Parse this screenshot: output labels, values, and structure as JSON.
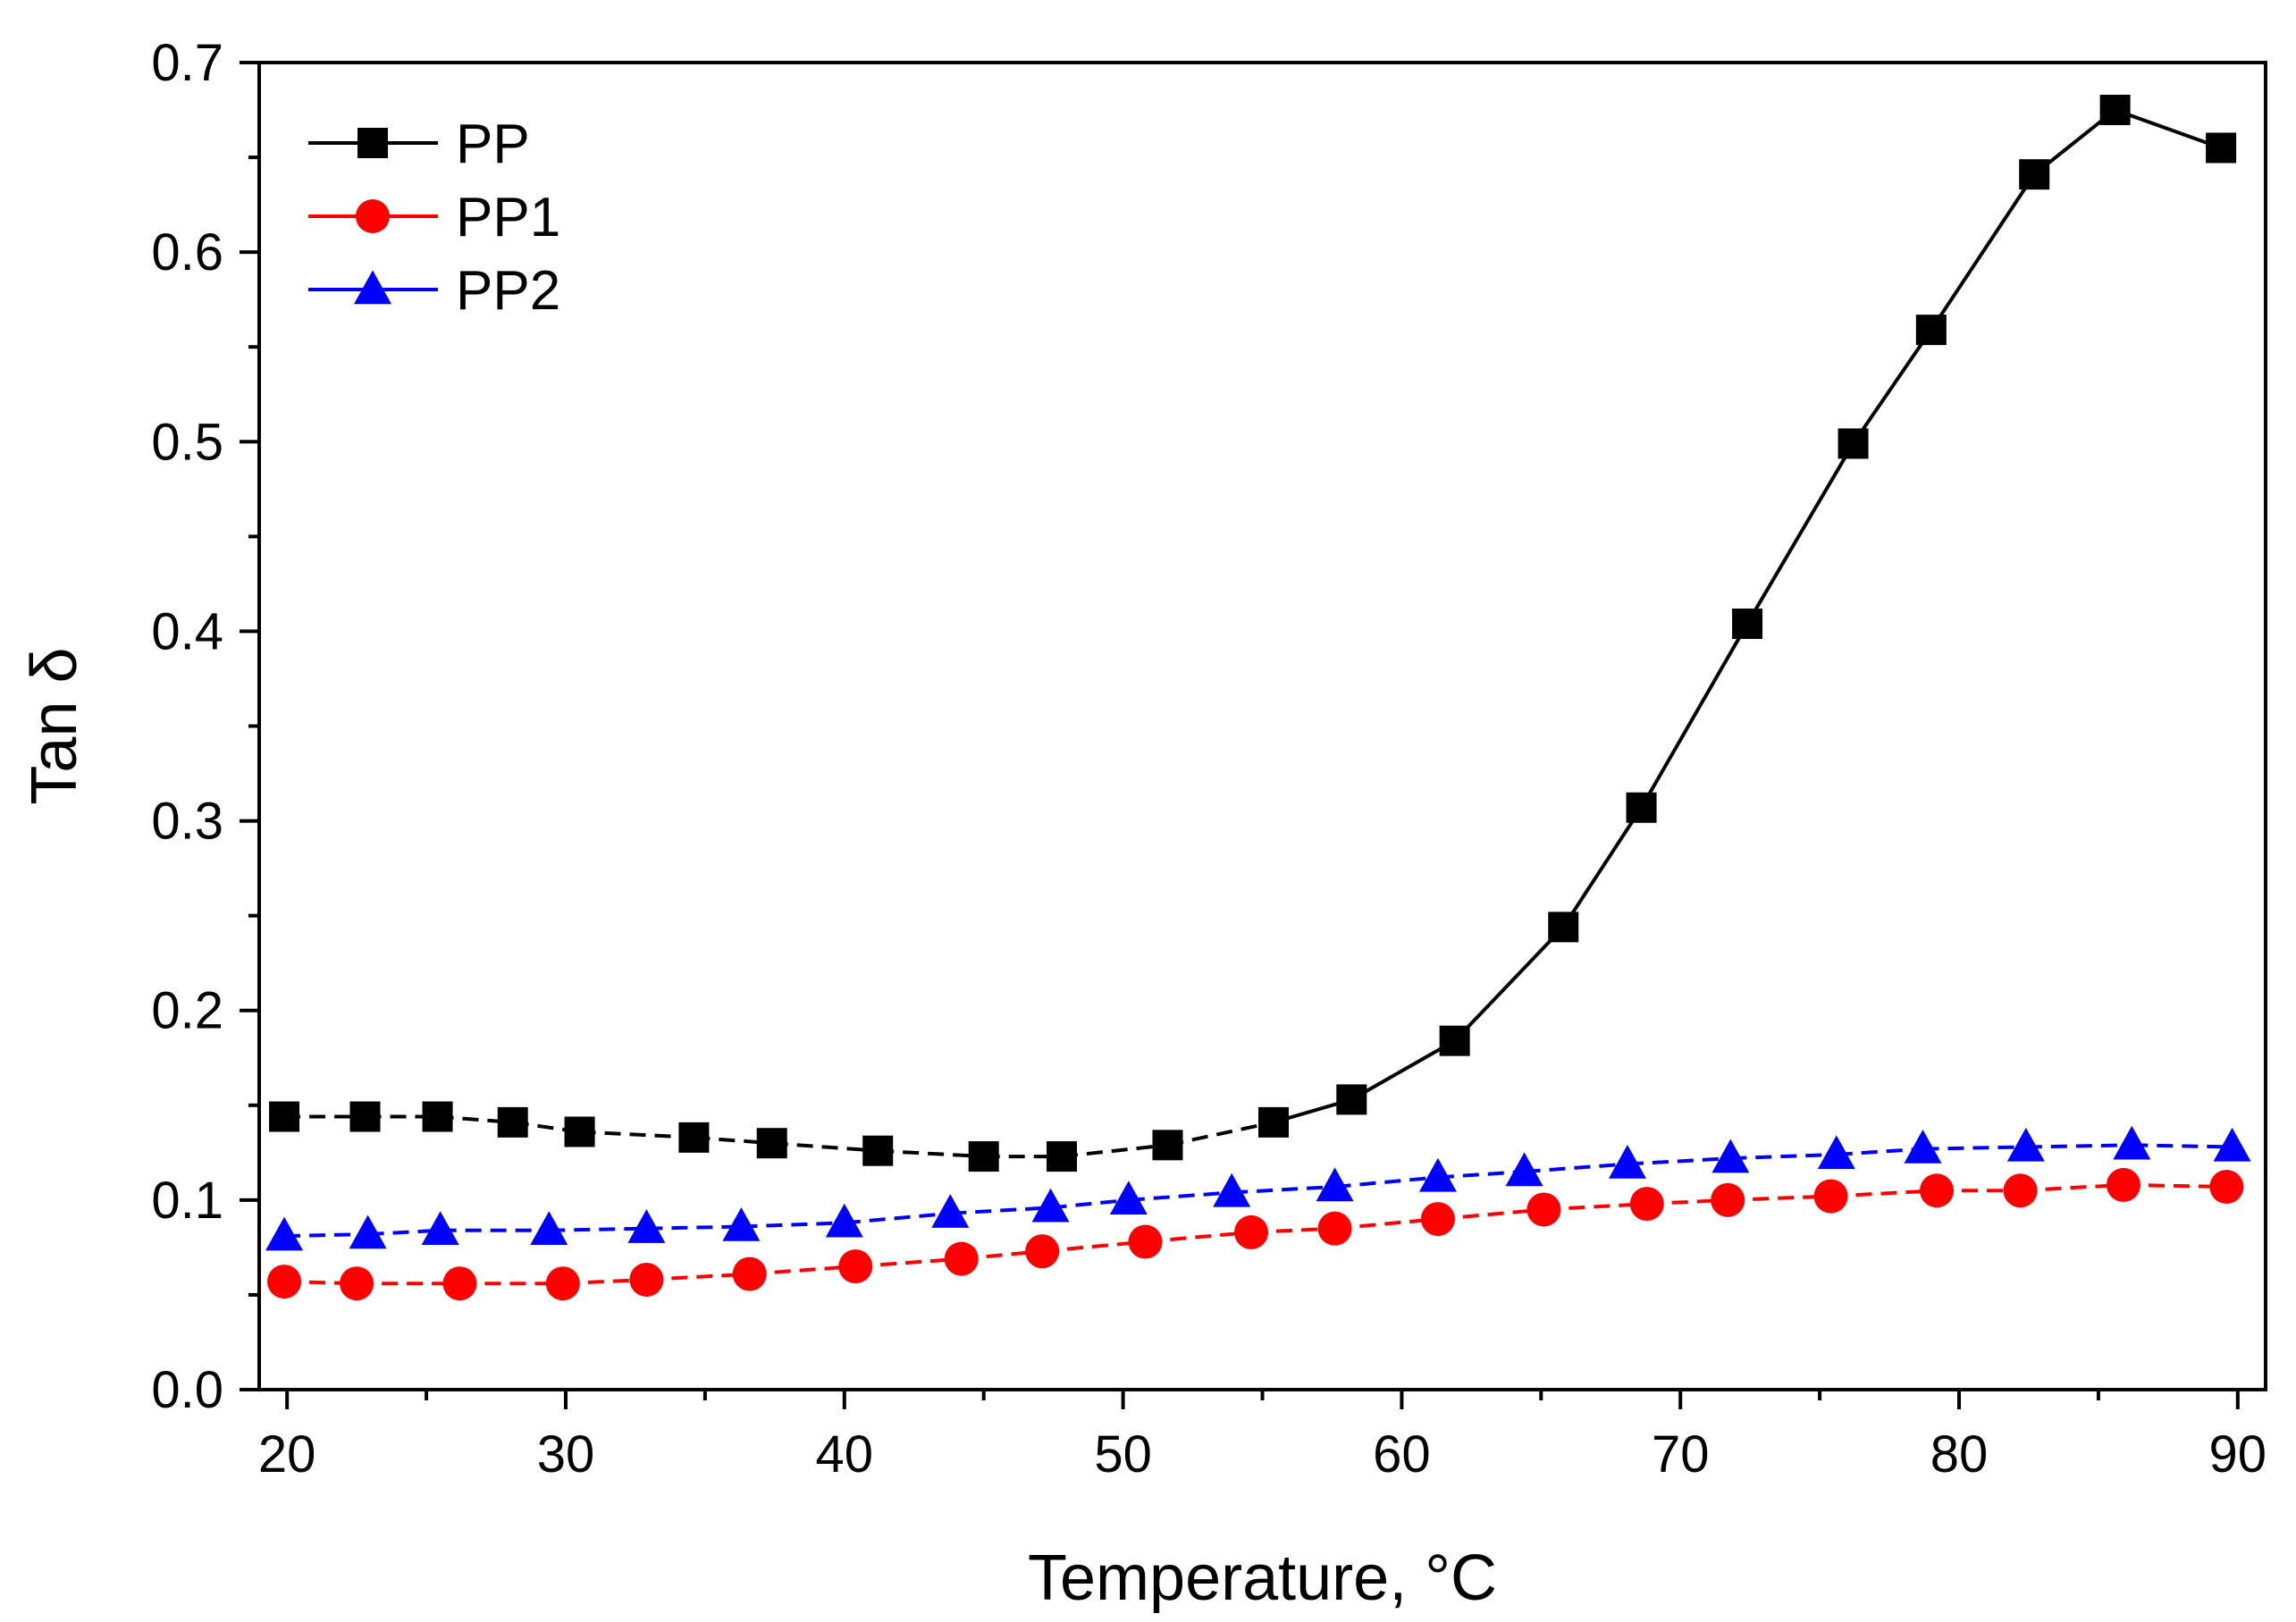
{
  "chart_data": {
    "type": "line",
    "title": "",
    "xlabel": "Temperature, °C",
    "ylabel": "Tan δ",
    "xlim": [
      19,
      91
    ],
    "ylim": [
      0.0,
      0.7
    ],
    "xticks": [
      20,
      30,
      40,
      50,
      60,
      70,
      80,
      90
    ],
    "xtick_labels": [
      "20",
      "30",
      "40",
      "50",
      "60",
      "70",
      "80",
      "90"
    ],
    "yticks": [
      0.0,
      0.1,
      0.2,
      0.3,
      0.4,
      0.5,
      0.6,
      0.7
    ],
    "ytick_labels": [
      "0.0",
      "0.1",
      "0.2",
      "0.3",
      "0.4",
      "0.5",
      "0.6",
      "0.7"
    ],
    "legend_position": "top-left",
    "grid": false,
    "series": [
      {
        "name": "PP",
        "color": "#000000",
        "marker": "square",
        "dash": "dashed-then-solid",
        "x": [
          19.9,
          22.8,
          25.4,
          28.1,
          30.5,
          34.6,
          37.4,
          41.2,
          45.0,
          47.8,
          51.6,
          55.4,
          58.2,
          61.9,
          65.8,
          68.6,
          72.4,
          76.2,
          79.0,
          82.7,
          85.6,
          89.4
        ],
        "values": [
          0.144,
          0.144,
          0.144,
          0.141,
          0.136,
          0.133,
          0.13,
          0.126,
          0.123,
          0.123,
          0.129,
          0.141,
          0.153,
          0.184,
          0.244,
          0.307,
          0.404,
          0.499,
          0.559,
          0.641,
          0.675,
          0.655
        ]
      },
      {
        "name": "PP1",
        "color": "#ff0000",
        "marker": "circle",
        "dash": "dashed",
        "x": [
          19.9,
          22.5,
          26.2,
          29.9,
          32.9,
          36.6,
          40.4,
          44.2,
          47.1,
          50.8,
          54.6,
          57.6,
          61.3,
          65.1,
          68.8,
          71.7,
          75.4,
          79.2,
          82.2,
          85.9,
          89.6
        ],
        "values": [
          0.057,
          0.056,
          0.056,
          0.056,
          0.058,
          0.061,
          0.065,
          0.069,
          0.073,
          0.078,
          0.083,
          0.085,
          0.09,
          0.095,
          0.098,
          0.1,
          0.102,
          0.105,
          0.105,
          0.108,
          0.107
        ]
      },
      {
        "name": "PP2",
        "color": "#0000ff",
        "marker": "triangle",
        "dash": "dashed",
        "x": [
          19.9,
          22.9,
          25.5,
          29.4,
          32.9,
          36.3,
          40.0,
          43.8,
          47.4,
          50.2,
          53.9,
          57.6,
          61.3,
          64.4,
          68.1,
          71.8,
          75.6,
          78.7,
          82.4,
          86.2,
          89.8
        ],
        "values": [
          0.081,
          0.082,
          0.084,
          0.084,
          0.085,
          0.086,
          0.088,
          0.093,
          0.096,
          0.1,
          0.104,
          0.107,
          0.112,
          0.115,
          0.119,
          0.122,
          0.124,
          0.127,
          0.128,
          0.129,
          0.128
        ]
      }
    ]
  }
}
